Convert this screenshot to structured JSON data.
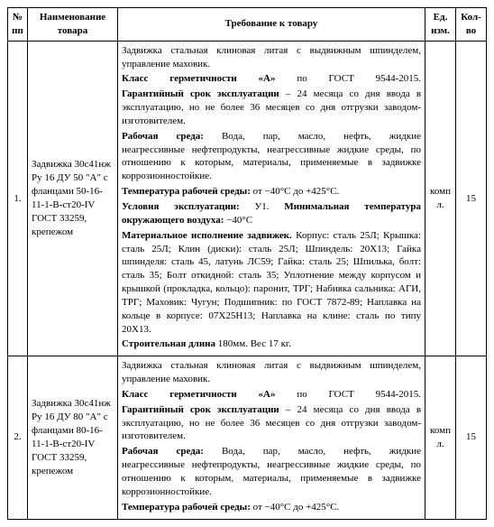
{
  "headers": {
    "idx": "№ пп",
    "name": "Наименование товара",
    "req": "Требование к товару",
    "unit": "Ед. изм.",
    "qty": "Кол-во"
  },
  "rows": [
    {
      "idx": "1.",
      "name": "Задвижка 30с41нж Ру 16 ДУ 50 \"A\" с фланцами 50-16-11-1-В-ст20-IV ГОСТ 33259, крепежом",
      "unit": "компл.",
      "qty": "15",
      "req": {
        "intro": "Задвижка стальная клиновая литая с выдвижным шпинделем, управление маховик.",
        "class_label": "Класс герметичности",
        "class_grade": "«А»",
        "class_mid": "по",
        "class_std": "ГОСТ 9544-2015.",
        "warranty_label": "Гарантийный срок эксплуатации",
        "warranty_text": " – 24 месяца со дня ввода в эксплуатацию, но не более 36 месяцев со дня отгрузки заводом-изготовителем.",
        "env_label": "Рабочая среда:",
        "env_lead": " Вода, пар, масло, нефть, жидкие",
        "env_rest": " неагрессивные нефтепродукты, неагрессивные жидкие среды, по отношению к которым, материалы, применяемые в задвижке коррозионностойкие.",
        "temp_label": "Температура рабочей среды:",
        "temp_text": " от −40°C до +425°C.",
        "cond_label": "Условия эксплуатации:",
        "cond_text": " У1. ",
        "mintemp_label": "Минимальная температура окружающего воздуха:",
        "mintemp_text": " −40°C",
        "mat_label": "Материальное исполнение задвижек.",
        "mat_text": " Корпус: сталь 25Л; Крышка: сталь 25Л; Клин (диски): сталь 25Л; Шпиндель: 20Х13; Гайка шпинделя: сталь 45, латунь ЛС59; Гайка: сталь 25; Шпилька, болт: сталь 35; Болт откидной: сталь 35; Уплотнение между корпусом и крышкой (прокладка, кольцо): паронит, ТРГ; Набивка сальника: АГИ, ТРГ; Маховик: Чугун; Подшипник: по ГОСТ 7872-89; Наплавка на кольце в корпусе: 07Х25Н13; Наплавка на клине: сталь по типу 20Х13.",
        "dim_label": "Строительная длина",
        "dim_text": " 180мм. Вес 17 кг."
      }
    },
    {
      "idx": "2.",
      "name": "Задвижка 30с41нж Ру 16 ДУ 80 \"A\" с фланцами 80-16-11-1-В-ст20-IV ГОСТ 33259, крепежом",
      "unit": "компл.",
      "qty": "15",
      "req": {
        "intro": "Задвижка стальная клиновая литая с выдвижным шпинделем, управление маховик.",
        "class_label": "Класс герметичности",
        "class_grade": "«А»",
        "class_mid": "по",
        "class_std": "ГОСТ 9544-2015.",
        "warranty_label": "Гарантийный срок эксплуатации",
        "warranty_text": " – 24 месяца со дня ввода в эксплуатацию, но не более 36 месяцев со дня отгрузки заводом-изготовителем.",
        "env_label": "Рабочая среда:",
        "env_lead": " Вода, пар, масло, нефть, жидкие",
        "env_rest": " неагрессивные нефтепродукты, неагрессивные жидкие среды, по отношению к которым, материалы, применяемые в задвижке коррозионностойкие.",
        "temp_label": "Температура рабочей среды:",
        "temp_text": " от −40°C до +425°C."
      }
    }
  ]
}
